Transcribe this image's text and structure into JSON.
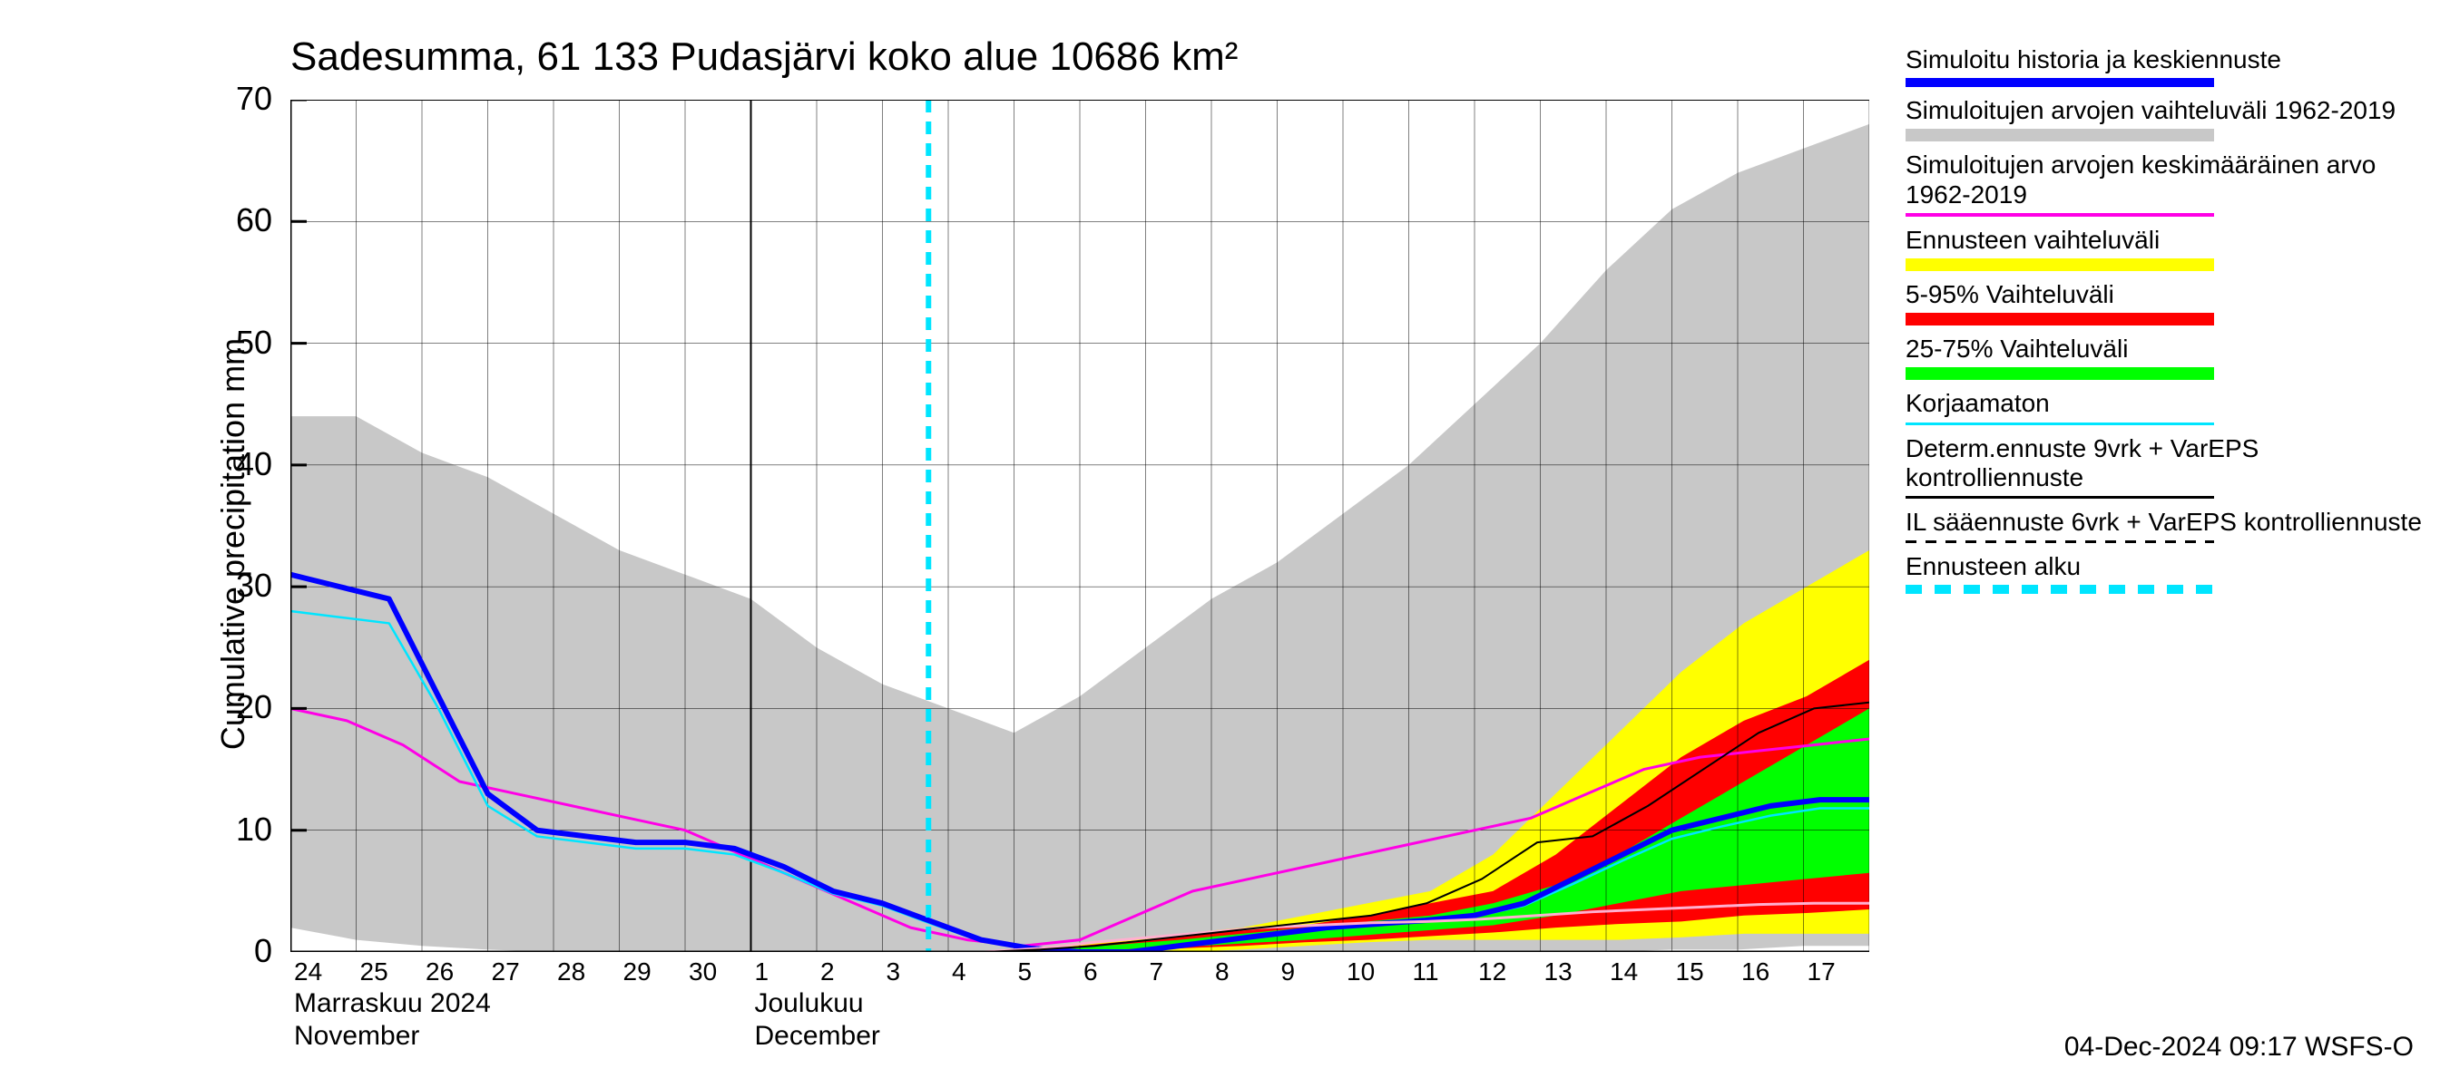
{
  "chart": {
    "title": "Sadesumma, 61 133 Pudasjärvi koko alue 10686 km²",
    "y_axis_label": "Cumulative precipitation   mm",
    "timestamp": "04-Dec-2024 09:17 WSFS-O",
    "background_color": "#ffffff",
    "grid_color": "#000000",
    "grid_stroke": 0.5,
    "axis_color": "#000000",
    "title_fontsize": 44,
    "label_fontsize": 36,
    "tick_fontsize": 28,
    "x_days": [
      "24",
      "25",
      "26",
      "27",
      "28",
      "29",
      "30",
      "1",
      "2",
      "3",
      "4",
      "5",
      "6",
      "7",
      "8",
      "9",
      "10",
      "11",
      "12",
      "13",
      "14",
      "15",
      "16",
      "17"
    ],
    "x_month_labels": [
      {
        "line1": "Marraskuu 2024",
        "line2": "November",
        "at_index": 0
      },
      {
        "line1": "Joulukuu",
        "line2": "December",
        "at_index": 7
      }
    ],
    "month_boundary_index": 7,
    "ylim": [
      0,
      70
    ],
    "ytick_step": 10,
    "forecast_start_index": 9.7,
    "hist_range": {
      "upper": [
        44,
        44,
        41,
        39,
        36,
        33,
        31,
        29,
        25,
        22,
        20,
        18,
        21,
        25,
        29,
        32,
        36,
        40,
        45,
        50,
        56,
        61,
        64,
        66,
        68
      ],
      "lower": [
        2,
        1,
        0.5,
        0.2,
        0,
        0,
        0,
        0,
        0,
        0,
        0,
        0,
        0,
        0,
        0,
        0,
        0,
        0,
        0,
        0,
        0,
        0.2,
        0.2,
        0.5,
        0.5
      ],
      "fill": "#c8c8c8"
    },
    "yellow_band": {
      "upper_from": 9.7,
      "upper": [
        0,
        0,
        0.5,
        1,
        1.5,
        2,
        3,
        4,
        5,
        8,
        13,
        18,
        23,
        27,
        30,
        33
      ],
      "lower": [
        0,
        0,
        0,
        0,
        0,
        0.2,
        0.5,
        0.8,
        1,
        1,
        1,
        1,
        1.2,
        1.5,
        1.5,
        1.5
      ],
      "fill": "#ffff00"
    },
    "red_band": {
      "upper_from": 9.7,
      "upper": [
        0,
        0,
        0.3,
        0.8,
        1.2,
        1.8,
        2.2,
        3,
        4,
        5,
        8,
        12,
        16,
        19,
        21,
        24
      ],
      "lower": [
        0,
        0,
        0,
        0.1,
        0.3,
        0.5,
        0.8,
        1,
        1.3,
        1.6,
        2,
        2.3,
        2.5,
        3,
        3.2,
        3.5
      ],
      "fill": "#ff0000"
    },
    "green_band": {
      "upper_from": 9.7,
      "upper": [
        0,
        0,
        0.2,
        0.6,
        1,
        1.5,
        2,
        2.5,
        3,
        4,
        5.5,
        8,
        11,
        14,
        17,
        20
      ],
      "lower": [
        0,
        0,
        0,
        0.2,
        0.4,
        0.7,
        1,
        1.4,
        1.8,
        2.2,
        3,
        4,
        5,
        5.5,
        6,
        6.5
      ],
      "fill": "#00ff00"
    },
    "lines": {
      "magenta": {
        "color": "#ff00e6",
        "width": 3,
        "y": [
          20,
          19,
          17,
          14,
          13,
          12,
          11,
          10,
          8,
          6,
          4,
          2,
          1,
          0.5,
          1,
          3,
          5,
          6,
          7,
          8,
          9,
          10,
          11,
          13,
          15,
          16,
          16.5,
          17,
          17.5
        ]
      },
      "blue_main": {
        "color": "#0000ff",
        "width": 6,
        "y": [
          31,
          30,
          29,
          21,
          13,
          10,
          9.5,
          9,
          9,
          8.5,
          7,
          5,
          4,
          2.5,
          1,
          0.3,
          0,
          0,
          0.5,
          1,
          1.5,
          2,
          2.3,
          2.6,
          3,
          4,
          6,
          8,
          10,
          11,
          12,
          12.5,
          12.5
        ]
      },
      "cyan_uncorr": {
        "color": "#00e5ff",
        "width": 2.5,
        "y": [
          28,
          27.5,
          27,
          20,
          12,
          9.5,
          9,
          8.5,
          8.5,
          8,
          6.5,
          4.8,
          3.8,
          2.3,
          0.9,
          0.2,
          0,
          0,
          0.4,
          0.9,
          1.4,
          1.9,
          2.2,
          2.5,
          2.9,
          3.8,
          5.6,
          7.5,
          9.3,
          10.3,
          11.2,
          11.8,
          11.8
        ]
      },
      "black_det": {
        "color": "#000000",
        "width": 2,
        "from": 9.7,
        "y": [
          0,
          0,
          0.2,
          0.5,
          1,
          1.5,
          2,
          2.5,
          3,
          4,
          6,
          9,
          9.5,
          12,
          15,
          18,
          20,
          20.5
        ]
      },
      "pink_low": {
        "color": "#ffb0d0",
        "width": 3,
        "from": 9.7,
        "y": [
          0,
          0,
          0.3,
          0.8,
          1.2,
          1.6,
          2,
          2.2,
          2.4,
          2.5,
          2.7,
          3,
          3.3,
          3.5,
          3.7,
          3.9,
          4,
          4
        ]
      },
      "black_dash": {
        "color": "#000000",
        "width": 2,
        "dash": "8,6",
        "from": 9.7,
        "y": [
          0,
          0,
          0,
          0,
          0,
          0,
          0,
          0,
          0,
          0,
          0,
          0,
          0,
          0,
          0,
          0,
          0,
          0
        ]
      }
    },
    "forecast_line": {
      "color": "#00e5ff",
      "width": 6,
      "dash": "14,10"
    }
  },
  "legend": {
    "items": [
      {
        "text": "Simuloitu historia ja keskiennuste",
        "swatch_type": "line",
        "color": "#0000ff",
        "height": 10
      },
      {
        "text": "Simuloitujen arvojen vaihteluväli 1962-2019",
        "swatch_type": "block",
        "color": "#c8c8c8",
        "height": 14
      },
      {
        "text": "Simuloitujen arvojen keskimääräinen arvo   1962-2019",
        "swatch_type": "line",
        "color": "#ff00e6",
        "height": 4
      },
      {
        "text": "Ennusteen vaihteluväli",
        "swatch_type": "block",
        "color": "#ffff00",
        "height": 14
      },
      {
        "text": "5-95% Vaihteluväli",
        "swatch_type": "block",
        "color": "#ff0000",
        "height": 14
      },
      {
        "text": "25-75% Vaihteluväli",
        "swatch_type": "block",
        "color": "#00ff00",
        "height": 14
      },
      {
        "text": "Korjaamaton",
        "swatch_type": "line",
        "color": "#00e5ff",
        "height": 3
      },
      {
        "text": "Determ.ennuste 9vrk + VarEPS kontrolliennuste",
        "swatch_type": "line",
        "color": "#000000",
        "height": 3
      },
      {
        "text": "IL sääennuste 6vrk  +  VarEPS kontrolliennuste",
        "swatch_type": "dash",
        "color": "#000000",
        "height": 3
      },
      {
        "text": "Ennusteen alku",
        "swatch_type": "dash-thick",
        "color": "#00e5ff",
        "height": 10
      }
    ]
  }
}
